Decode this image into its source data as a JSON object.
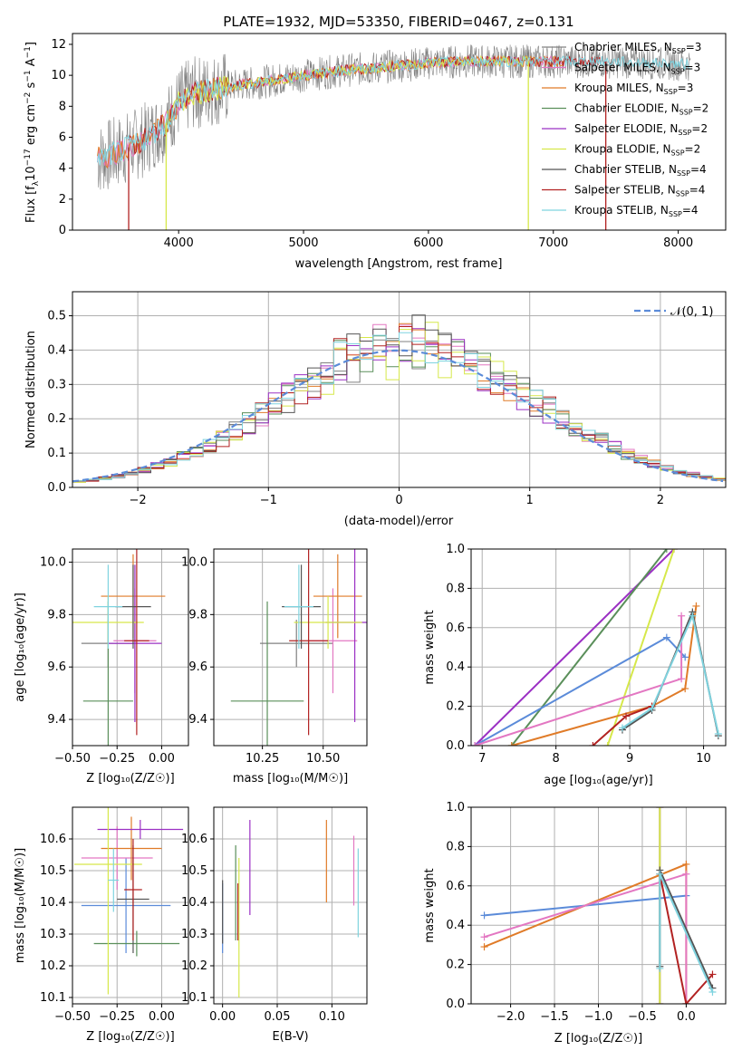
{
  "figure": {
    "title": "PLATE=1932, MJD=53350, FIBERID=0467, z=0.131"
  },
  "colors": {
    "chabrier_miles": "#808080",
    "salpeter_miles": "#e377c2",
    "kroupa_miles": "#e07b28",
    "chabrier_elodie": "#5a8f5a",
    "salpeter_elodie": "#9b30c4",
    "kroupa_elodie": "#d6e84a",
    "chabrier_stelib": "#555555",
    "salpeter_stelib": "#b22222",
    "kroupa_stelib": "#7fd3df",
    "normal_curve": "#5b8bd9",
    "grid": "#b0b0b0"
  },
  "chart_data": [
    {
      "id": "spectrum",
      "type": "line",
      "xlabel": "wavelength [Angstrom, rest frame]",
      "ylabel_main": "Flux [f",
      "ylabel_sub": "λ",
      "ylabel_rest": "10",
      "ylabel_exp": "−17",
      "ylabel_tail": " erg cm",
      "ylabel_exp2": "−2",
      "ylabel_tail2": " s",
      "ylabel_exp3": "−1",
      "ylabel_tail3": " A",
      "ylabel_exp4": "−1",
      "ylabel_end": "]",
      "xlim": [
        3150,
        8380
      ],
      "ylim": [
        0,
        12.7
      ],
      "xticks": [
        4000,
        5000,
        6000,
        7000,
        8000
      ],
      "yticks": [
        0,
        2,
        4,
        6,
        8,
        10,
        12
      ],
      "legend_position": "right",
      "legend": [
        {
          "label": "Chabrier MILES, N",
          "sub": "SSP",
          "tail": "=3",
          "color": "chabrier_miles"
        },
        {
          "label": "Salpeter MILES, N",
          "sub": "SSP",
          "tail": "=3",
          "color": "salpeter_miles"
        },
        {
          "label": "Kroupa MILES, N",
          "sub": "SSP",
          "tail": "=3",
          "color": "kroupa_miles"
        },
        {
          "label": "Chabrier ELODIE, N",
          "sub": "SSP",
          "tail": "=2",
          "color": "chabrier_elodie"
        },
        {
          "label": "Salpeter ELODIE, N",
          "sub": "SSP",
          "tail": "=2",
          "color": "salpeter_elodie"
        },
        {
          "label": "Kroupa ELODIE, N",
          "sub": "SSP",
          "tail": "=2",
          "color": "kroupa_elodie"
        },
        {
          "label": "Chabrier STELIB, N",
          "sub": "SSP",
          "tail": "=4",
          "color": "chabrier_stelib"
        },
        {
          "label": "Salpeter STELIB, N",
          "sub": "SSP",
          "tail": "=4",
          "color": "salpeter_stelib"
        },
        {
          "label": "Kroupa STELIB, N",
          "sub": "SSP",
          "tail": "=4",
          "color": "kroupa_stelib"
        }
      ],
      "continuum": {
        "x": [
          3350,
          3500,
          3700,
          3900,
          4000,
          4100,
          4300,
          4500,
          4700,
          5000,
          5300,
          5600,
          6000,
          6300,
          6600,
          7000,
          7400,
          7800,
          8100
        ],
        "y": [
          4.6,
          5.0,
          5.7,
          6.9,
          8.2,
          8.8,
          9.1,
          9.4,
          9.6,
          10.0,
          10.3,
          10.5,
          10.8,
          10.9,
          10.9,
          10.9,
          10.9,
          10.8,
          10.7
        ]
      },
      "model_ranges": {
        "kroupa_elodie": [
          3900,
          6800
        ],
        "salpeter_stelib": [
          3600,
          7420
        ],
        "kroupa_stelib": [
          3350,
          8100
        ]
      }
    },
    {
      "id": "residual_histogram",
      "type": "bar",
      "xlabel": "(data-model)/error",
      "ylabel": "Normed distribution",
      "xlim": [
        -2.5,
        2.5
      ],
      "ylim": [
        0,
        0.57
      ],
      "xticks": [
        -2,
        -1,
        0,
        1,
        2
      ],
      "yticks": [
        0.0,
        0.1,
        0.2,
        0.3,
        0.4,
        0.5
      ],
      "legend_position": "top-right",
      "legend_label": "𝒩(0, 1)",
      "bin_width": 0.1
    },
    {
      "id": "age_vs_Z",
      "type": "scatter",
      "ylabel": "age  [log₁₀(age/yr)]",
      "xlabel": "Z [log₁₀(Z/Z☉)]",
      "xlim": [
        -0.5,
        0.15
      ],
      "ylim": [
        9.3,
        10.05
      ],
      "xticks": [
        -0.5,
        -0.25,
        0.0
      ],
      "yticks": [
        9.4,
        9.6,
        9.8,
        10.0
      ],
      "points": [
        {
          "x": -0.3,
          "y": 9.69,
          "xerr": 0.15,
          "yerr": 0.09,
          "color": "chabrier_miles"
        },
        {
          "x": -0.15,
          "y": 9.7,
          "xerr": 0.12,
          "yerr": 0.2,
          "color": "salpeter_miles"
        },
        {
          "x": -0.16,
          "y": 9.87,
          "xerr": 0.18,
          "yerr": 0.16,
          "color": "kroupa_miles"
        },
        {
          "x": -0.3,
          "y": 9.47,
          "xerr": 0.14,
          "yerr": 0.38,
          "color": "chabrier_elodie"
        },
        {
          "x": -0.15,
          "y": 9.69,
          "xerr": 0.15,
          "yerr": 0.3,
          "color": "salpeter_elodie"
        },
        {
          "x": -0.3,
          "y": 9.77,
          "xerr": 0.2,
          "yerr": 0.1,
          "color": "kroupa_elodie"
        },
        {
          "x": -0.16,
          "y": 9.83,
          "xerr": 0.1,
          "yerr": 0.16,
          "color": "chabrier_stelib"
        },
        {
          "x": -0.14,
          "y": 9.7,
          "xerr": 0.07,
          "yerr": 0.36,
          "color": "salpeter_stelib"
        },
        {
          "x": -0.3,
          "y": 9.83,
          "xerr": 0.08,
          "yerr": 0.16,
          "color": "kroupa_stelib"
        }
      ]
    },
    {
      "id": "age_vs_mass",
      "type": "scatter",
      "xlabel": "mass [log₁₀(M/M☉)]",
      "xlim": [
        10.05,
        10.68
      ],
      "ylim": [
        9.3,
        10.05
      ],
      "xticks": [
        10.25,
        10.5
      ],
      "yticks": [
        9.4,
        9.6,
        9.8,
        10.0
      ],
      "points": [
        {
          "x": 10.39,
          "y": 9.69,
          "xerr": 0.15,
          "yerr": 0.09,
          "color": "chabrier_miles"
        },
        {
          "x": 10.54,
          "y": 9.7,
          "xerr": 0.1,
          "yerr": 0.2,
          "color": "salpeter_miles"
        },
        {
          "x": 10.56,
          "y": 9.87,
          "xerr": 0.1,
          "yerr": 0.16,
          "color": "kroupa_miles"
        },
        {
          "x": 10.27,
          "y": 9.47,
          "xerr": 0.15,
          "yerr": 0.38,
          "color": "chabrier_elodie"
        },
        {
          "x": 10.63,
          "y": 9.77,
          "xerr": 0.12,
          "yerr": 0.38,
          "color": "salpeter_elodie"
        },
        {
          "x": 10.52,
          "y": 9.77,
          "xerr": 0.14,
          "yerr": 0.1,
          "color": "kroupa_elodie"
        },
        {
          "x": 10.41,
          "y": 9.83,
          "xerr": 0.08,
          "yerr": 0.16,
          "color": "chabrier_stelib"
        },
        {
          "x": 10.44,
          "y": 9.7,
          "xerr": 0.08,
          "yerr": 0.36,
          "color": "salpeter_stelib"
        },
        {
          "x": 10.4,
          "y": 9.83,
          "xerr": 0.06,
          "yerr": 0.16,
          "color": "kroupa_stelib"
        }
      ]
    },
    {
      "id": "mass_weight_vs_age",
      "type": "line",
      "xlabel": "age  [log₁₀(age/yr)]",
      "ylabel": "mass weight",
      "xlim": [
        6.85,
        10.3
      ],
      "ylim": [
        0,
        1
      ],
      "xticks": [
        7,
        8,
        9,
        10
      ],
      "yticks": [
        0.0,
        0.2,
        0.4,
        0.6,
        0.8,
        1.0
      ],
      "series": [
        {
          "color": "salpeter_elodie",
          "x": [
            6.9,
            9.6
          ],
          "y": [
            0.0,
            1.0
          ]
        },
        {
          "color": "chabrier_elodie",
          "x": [
            7.4,
            9.5
          ],
          "y": [
            0.0,
            1.0
          ]
        },
        {
          "color": "kroupa_elodie",
          "x": [
            8.7,
            9.6
          ],
          "y": [
            0.0,
            1.0
          ]
        },
        {
          "color": "normal_curve",
          "x": [
            6.9,
            9.5,
            9.75
          ],
          "y": [
            0.0,
            0.55,
            0.45
          ]
        },
        {
          "color": "salpeter_miles",
          "x": [
            6.9,
            9.7,
            9.7
          ],
          "y": [
            0.0,
            0.34,
            0.66
          ]
        },
        {
          "color": "kroupa_miles",
          "x": [
            7.4,
            9.3,
            9.75,
            9.9
          ],
          "y": [
            0.0,
            0.2,
            0.29,
            0.71
          ]
        },
        {
          "color": "salpeter_stelib",
          "x": [
            8.5,
            8.95,
            9.3
          ],
          "y": [
            0.0,
            0.15,
            0.2
          ]
        },
        {
          "color": "chabrier_stelib",
          "x": [
            8.9,
            9.3,
            9.85,
            10.2
          ],
          "y": [
            0.08,
            0.18,
            0.68,
            0.05
          ]
        },
        {
          "color": "kroupa_stelib",
          "x": [
            8.9,
            9.3,
            9.85,
            10.2
          ],
          "y": [
            0.09,
            0.19,
            0.66,
            0.06
          ]
        }
      ]
    },
    {
      "id": "mass_vs_Z",
      "type": "scatter",
      "ylabel": "mass [log₁₀(M/M☉)]",
      "xlabel": "Z [log₁₀(Z/Z☉)]",
      "xlim": [
        -0.5,
        0.15
      ],
      "ylim": [
        10.08,
        10.7
      ],
      "xticks": [
        -0.5,
        -0.25,
        0.0
      ],
      "yticks": [
        10.1,
        10.2,
        10.3,
        10.4,
        10.5,
        10.6
      ],
      "points": [
        {
          "x": -0.2,
          "y": 10.39,
          "xerr": 0.25,
          "yerr": 0.15,
          "color": "normal_curve"
        },
        {
          "x": -0.25,
          "y": 10.54,
          "xerr": 0.2,
          "yerr": 0.1,
          "color": "salpeter_miles"
        },
        {
          "x": -0.17,
          "y": 10.57,
          "xerr": 0.17,
          "yerr": 0.1,
          "color": "kroupa_miles"
        },
        {
          "x": -0.14,
          "y": 10.27,
          "xerr": 0.24,
          "yerr": 0.04,
          "color": "chabrier_elodie"
        },
        {
          "x": -0.12,
          "y": 10.63,
          "xerr": 0.24,
          "yerr": 0.03,
          "color": "salpeter_elodie"
        },
        {
          "x": -0.3,
          "y": 10.52,
          "xerr": 0.19,
          "yerr": 0.41,
          "color": "kroupa_elodie"
        },
        {
          "x": -0.16,
          "y": 10.41,
          "xerr": 0.09,
          "yerr": 0.17,
          "color": "chabrier_stelib"
        },
        {
          "x": -0.16,
          "y": 10.44,
          "xerr": 0.05,
          "yerr": 0.16,
          "color": "salpeter_stelib"
        },
        {
          "x": -0.27,
          "y": 10.47,
          "xerr": 0.03,
          "yerr": 0.1,
          "color": "kroupa_stelib"
        }
      ]
    },
    {
      "id": "mass_vs_ebv",
      "type": "scatter",
      "xlabel": "E(B-V)",
      "xlim": [
        -0.008,
        0.132
      ],
      "ylim": [
        10.08,
        10.7
      ],
      "xticks": [
        0.0,
        0.05,
        0.1
      ],
      "yticks": [
        10.1,
        10.2,
        10.3,
        10.4,
        10.5,
        10.6
      ],
      "points": [
        {
          "x": 0.0,
          "y": 10.35,
          "yerr": 0.11,
          "color": "normal_curve"
        },
        {
          "x": 0.12,
          "y": 10.5,
          "yerr": 0.11,
          "color": "salpeter_miles"
        },
        {
          "x": 0.095,
          "y": 10.53,
          "yerr": 0.13,
          "color": "kroupa_miles"
        },
        {
          "x": 0.012,
          "y": 10.43,
          "yerr": 0.15,
          "color": "chabrier_elodie"
        },
        {
          "x": 0.025,
          "y": 10.51,
          "yerr": 0.15,
          "color": "salpeter_elodie"
        },
        {
          "x": 0.015,
          "y": 10.32,
          "yerr": 0.22,
          "color": "kroupa_elodie"
        },
        {
          "x": 0.0,
          "y": 10.37,
          "yerr": 0.1,
          "color": "chabrier_stelib"
        },
        {
          "x": 0.014,
          "y": 10.37,
          "yerr": 0.09,
          "color": "salpeter_stelib"
        },
        {
          "x": 0.124,
          "y": 10.43,
          "yerr": 0.14,
          "color": "kroupa_stelib"
        }
      ]
    },
    {
      "id": "mass_weight_vs_Z",
      "type": "line",
      "xlabel": "Z [log₁₀(Z/Z☉)]",
      "ylabel": "mass weight",
      "xlim": [
        -2.45,
        0.45
      ],
      "ylim": [
        0,
        1
      ],
      "xticks": [
        -2.0,
        -1.5,
        -1.0,
        -0.5,
        0.0
      ],
      "yticks": [
        0.0,
        0.2,
        0.4,
        0.6,
        0.8,
        1.0
      ],
      "series": [
        {
          "color": "normal_curve",
          "x": [
            -2.3,
            0.0
          ],
          "y": [
            0.45,
            0.55
          ]
        },
        {
          "color": "kroupa_miles",
          "x": [
            -2.3,
            0.0,
            0.0
          ],
          "y": [
            0.29,
            0.71,
            0.0
          ]
        },
        {
          "color": "salpeter_miles",
          "x": [
            -2.3,
            0.0,
            0.0
          ],
          "y": [
            0.34,
            0.66,
            0.0
          ]
        },
        {
          "color": "salpeter_elodie",
          "x": [
            -0.3,
            -0.3
          ],
          "y": [
            1.0,
            0.0
          ]
        },
        {
          "color": "kroupa_elodie",
          "x": [
            -0.3,
            -0.3
          ],
          "y": [
            0.0,
            1.0
          ]
        },
        {
          "color": "salpeter_stelib",
          "x": [
            -0.3,
            0.0,
            0.3
          ],
          "y": [
            0.66,
            0.0,
            0.15
          ]
        },
        {
          "color": "chabrier_stelib",
          "x": [
            -0.3,
            -0.3,
            0.3
          ],
          "y": [
            0.19,
            0.68,
            0.08
          ]
        },
        {
          "color": "kroupa_stelib",
          "x": [
            -0.3,
            -0.3,
            0.3
          ],
          "y": [
            0.18,
            0.66,
            0.06
          ]
        }
      ]
    }
  ]
}
